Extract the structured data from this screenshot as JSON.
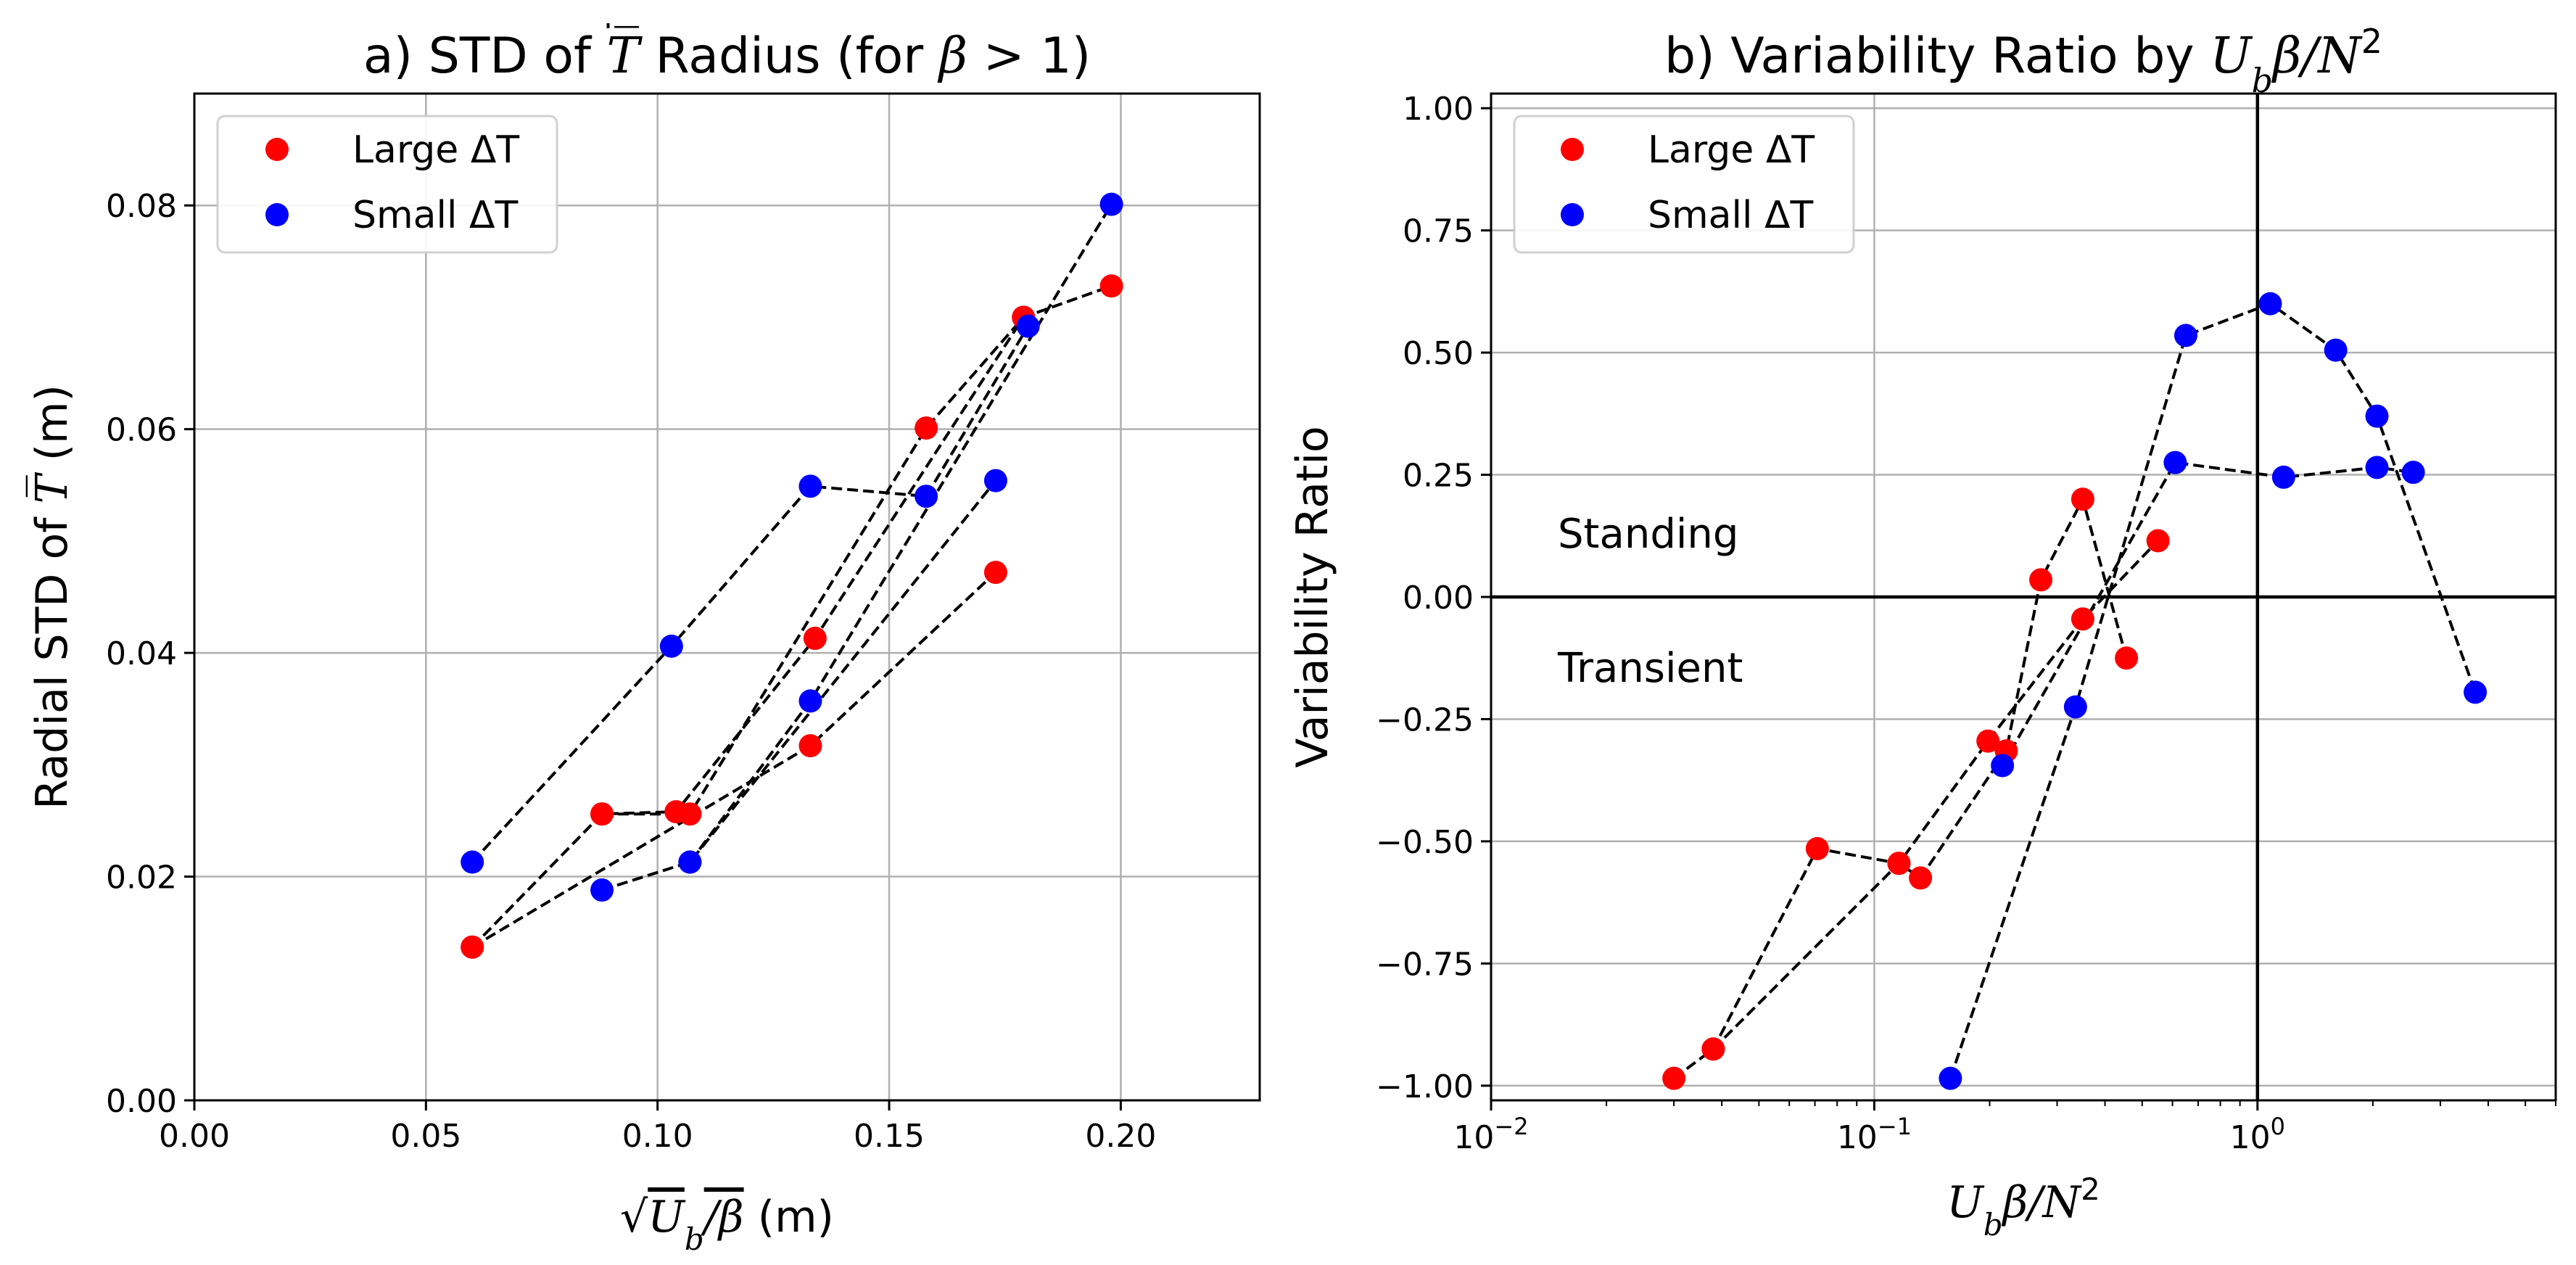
{
  "chart_data": [
    {
      "type": "scatter",
      "title": "a) STD of T̄ Radius (for β > 1)",
      "xlabel": "√(Ub/β) (m)",
      "ylabel": "Radial STD of T̄ (m)",
      "xlim": [
        0,
        0.23
      ],
      "ylim": [
        0,
        0.09
      ],
      "xticks": [
        "0.00",
        "0.05",
        "0.10",
        "0.15",
        "0.20"
      ],
      "yticks": [
        "0.00",
        "0.02",
        "0.04",
        "0.06",
        "0.08"
      ],
      "grid": true,
      "legend_position": "top-left",
      "legend": [
        "Large ΔT",
        "Small ΔT"
      ],
      "series": [
        {
          "name": "Large ΔT",
          "color": "#ff0000",
          "lines": [
            {
              "x": [
                0.06,
                0.088,
                0.104,
                0.134,
                0.179
              ],
              "y": [
                0.0137,
                0.0256,
                0.0258,
                0.0413,
                0.07
              ]
            },
            {
              "x": [
                0.088,
                0.107,
                0.158,
                0.179,
                0.198
              ],
              "y": [
                0.0256,
                0.0256,
                0.0601,
                0.07,
                0.0728
              ]
            },
            {
              "x": [
                0.06,
                0.133,
                0.173
              ],
              "y": [
                0.0137,
                0.0317,
                0.0472
              ]
            }
          ]
        },
        {
          "name": "Small ΔT",
          "color": "#0000ff",
          "lines": [
            {
              "x": [
                0.06,
                0.103,
                0.133,
                0.158,
                0.18
              ],
              "y": [
                0.0213,
                0.0406,
                0.0549,
                0.054,
                0.0692
              ]
            },
            {
              "x": [
                0.088,
                0.107,
                0.173
              ],
              "y": [
                0.0188,
                0.0213,
                0.0554
              ]
            },
            {
              "x": [
                0.107,
                0.133,
                0.198
              ],
              "y": [
                0.0213,
                0.0357,
                0.0801
              ]
            }
          ]
        }
      ]
    },
    {
      "type": "scatter",
      "title": "b) Variability Ratio by Ubβ/N²",
      "xlabel": "Ubβ/N²",
      "ylabel": "Variability Ratio",
      "xscale": "log",
      "xlim": [
        0.01,
        6
      ],
      "ylim": [
        -1.03,
        1.03
      ],
      "xticks": [
        "10⁻²",
        "10⁻¹",
        "10⁰"
      ],
      "yticks": [
        "−1.00",
        "−0.75",
        "−0.50",
        "−0.25",
        "0.00",
        "0.25",
        "0.50",
        "0.75",
        "1.00"
      ],
      "grid": true,
      "legend_position": "top-left",
      "legend": [
        "Large ΔT",
        "Small ΔT"
      ],
      "annotations": [
        "Standing",
        "Transient"
      ],
      "series": [
        {
          "name": "Large ΔT",
          "color": "#ff0000",
          "lines": [
            {
              "x": [
                0.03,
                0.038,
                0.071,
                0.116,
                0.132,
                0.221,
                0.272,
                0.35,
                0.455
              ],
              "y": [
                -0.985,
                -0.925,
                -0.515,
                -0.545,
                -0.575,
                -0.315,
                0.035,
                0.2,
                -0.125
              ]
            },
            {
              "x": [
                0.038,
                0.116,
                0.198,
                0.35,
                0.55
              ],
              "y": [
                -0.925,
                -0.545,
                -0.295,
                -0.045,
                0.115
              ]
            }
          ]
        },
        {
          "name": "Small ΔT",
          "color": "#0000ff",
          "lines": [
            {
              "x": [
                0.158,
                0.335,
                0.65,
                1.08,
                1.6,
                2.05,
                3.7
              ],
              "y": [
                -0.985,
                -0.225,
                0.535,
                0.6,
                0.505,
                0.37,
                -0.195
              ]
            },
            {
              "x": [
                0.216,
                0.61,
                1.17,
                2.05,
                2.55
              ],
              "y": [
                -0.345,
                0.275,
                0.245,
                0.265,
                0.255
              ]
            }
          ]
        }
      ]
    }
  ]
}
